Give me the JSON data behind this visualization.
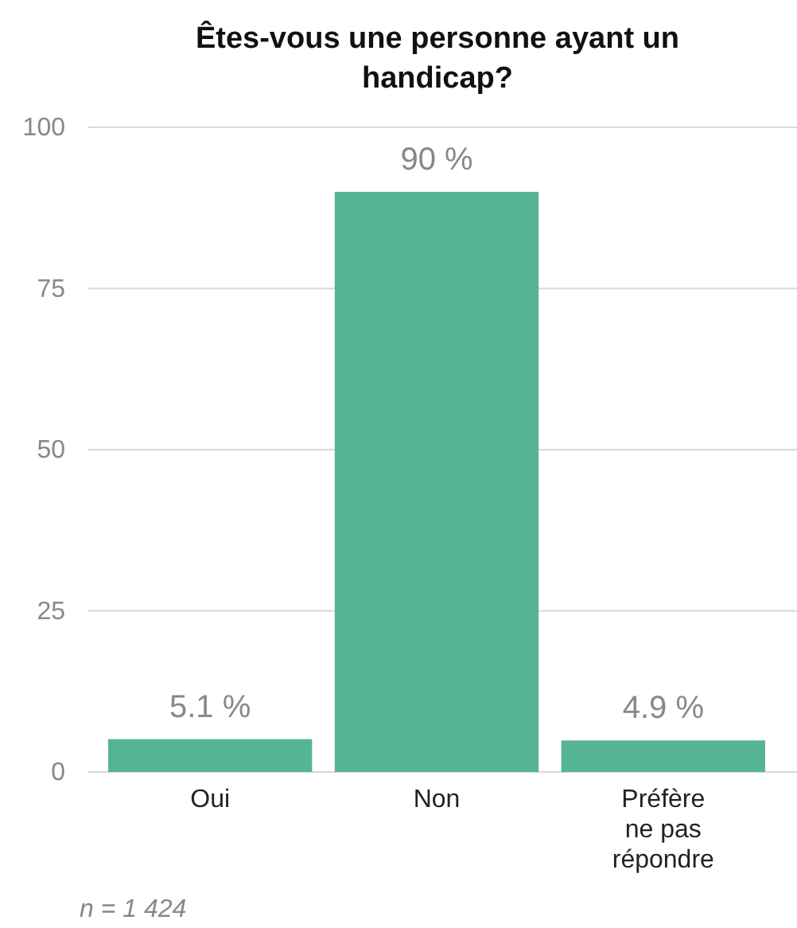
{
  "chart_data": {
    "type": "bar",
    "title": "Êtes-vous une personne ayant un handicap?",
    "categories": [
      "Oui",
      "Non",
      "Préfère ne pas répondre"
    ],
    "values": [
      5.1,
      90,
      4.9
    ],
    "value_labels": [
      "5.1 %",
      "90 %",
      "4.9 %"
    ],
    "color": "#55b592",
    "ylim": [
      0,
      100
    ],
    "yticks": [
      0,
      25,
      50,
      75,
      100
    ],
    "grid": "y",
    "annotations": [
      "n = 1 424"
    ]
  }
}
